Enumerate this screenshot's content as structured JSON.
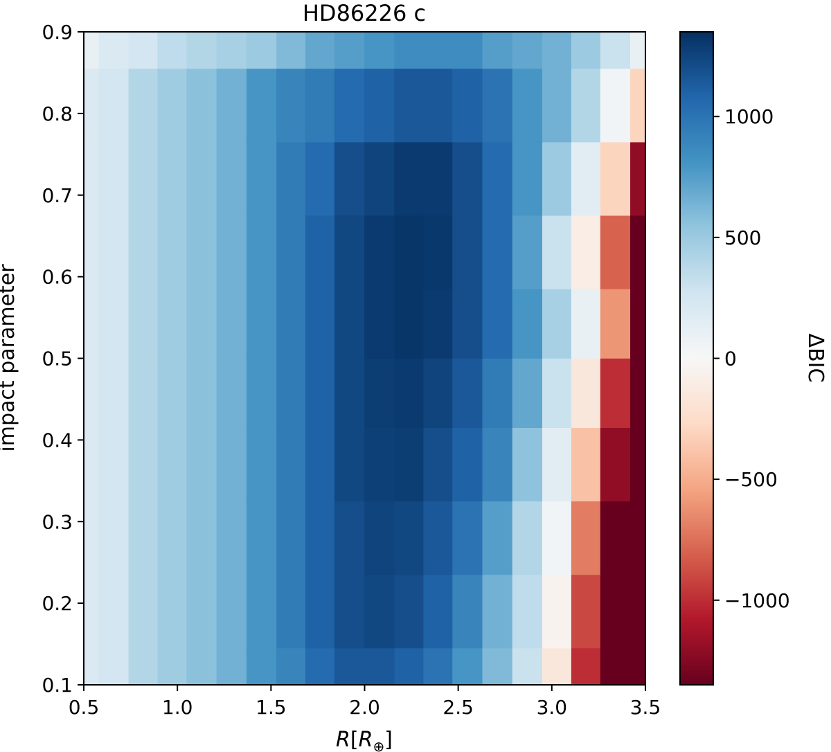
{
  "chart_data": {
    "type": "heatmap",
    "title": "HD86226 c",
    "xlabel_parts": [
      "R",
      "[",
      "R",
      "⊕",
      "]"
    ],
    "ylabel": "impact parameter",
    "colorbar_label": "ΔBIC",
    "colormap": "RdBu (red = negative, blue = positive)",
    "colorbar_range": [
      -1350,
      1350
    ],
    "xlim": [
      0.5,
      3.5
    ],
    "ylim": [
      0.1,
      0.9
    ],
    "grid": false,
    "x_ticks": [
      0.5,
      1.0,
      1.5,
      2.0,
      2.5,
      3.0,
      3.5
    ],
    "x_tick_labels": [
      "0.5",
      "1.0",
      "1.5",
      "2.0",
      "2.5",
      "3.0",
      "3.5"
    ],
    "y_ticks": [
      0.1,
      0.2,
      0.3,
      0.4,
      0.5,
      0.6,
      0.7,
      0.8,
      0.9
    ],
    "y_tick_labels": [
      "0.1",
      "0.2",
      "0.3",
      "0.4",
      "0.5",
      "0.6",
      "0.7",
      "0.8",
      "0.9"
    ],
    "colorbar_ticks": [
      -1000,
      -500,
      0,
      500,
      1000
    ],
    "colorbar_tick_labels": [
      "−1000",
      "−500",
      "0",
      "500",
      "1000"
    ],
    "x_centers": [
      0.5,
      0.66,
      0.82,
      0.97,
      1.13,
      1.29,
      1.45,
      1.61,
      1.76,
      1.92,
      2.08,
      2.24,
      2.39,
      2.55,
      2.71,
      2.87,
      3.03,
      3.18,
      3.34,
      3.5
    ],
    "y_centers": [
      0.1,
      0.19,
      0.28,
      0.37,
      0.46,
      0.54,
      0.63,
      0.72,
      0.81,
      0.9
    ],
    "values": [
      [
        200,
        250,
        400,
        480,
        560,
        650,
        800,
        900,
        1050,
        1150,
        1150,
        1100,
        1000,
        800,
        600,
        300,
        -150,
        -1000,
        -1400,
        -1400
      ],
      [
        200,
        250,
        400,
        480,
        560,
        650,
        800,
        950,
        1100,
        1200,
        1230,
        1200,
        1100,
        900,
        650,
        350,
        -50,
        -900,
        -1400,
        -1400
      ],
      [
        200,
        250,
        400,
        480,
        560,
        650,
        800,
        950,
        1100,
        1200,
        1250,
        1230,
        1150,
        1000,
        750,
        400,
        50,
        -700,
        -1400,
        -1400
      ],
      [
        200,
        250,
        400,
        480,
        560,
        650,
        800,
        950,
        1100,
        1230,
        1270,
        1280,
        1200,
        1100,
        900,
        550,
        150,
        -400,
        -1200,
        -1400
      ],
      [
        200,
        250,
        400,
        480,
        560,
        650,
        800,
        950,
        1100,
        1230,
        1280,
        1300,
        1250,
        1150,
        950,
        700,
        300,
        -150,
        -1000,
        -1400
      ],
      [
        200,
        250,
        400,
        480,
        560,
        650,
        800,
        950,
        1100,
        1230,
        1300,
        1320,
        1300,
        1200,
        1050,
        800,
        450,
        100,
        -600,
        -1400
      ],
      [
        200,
        250,
        400,
        480,
        560,
        650,
        800,
        950,
        1100,
        1230,
        1300,
        1320,
        1310,
        1200,
        1050,
        750,
        300,
        -100,
        -800,
        -1400
      ],
      [
        200,
        250,
        400,
        480,
        560,
        650,
        800,
        950,
        1050,
        1200,
        1250,
        1300,
        1300,
        1200,
        1050,
        800,
        500,
        150,
        -300,
        -1200
      ],
      [
        200,
        250,
        400,
        480,
        560,
        650,
        800,
        900,
        950,
        1050,
        1100,
        1150,
        1150,
        1100,
        1000,
        800,
        650,
        400,
        50,
        -300
      ],
      [
        100,
        200,
        250,
        350,
        400,
        450,
        500,
        600,
        700,
        750,
        800,
        850,
        850,
        850,
        750,
        700,
        650,
        500,
        300,
        100
      ]
    ]
  }
}
